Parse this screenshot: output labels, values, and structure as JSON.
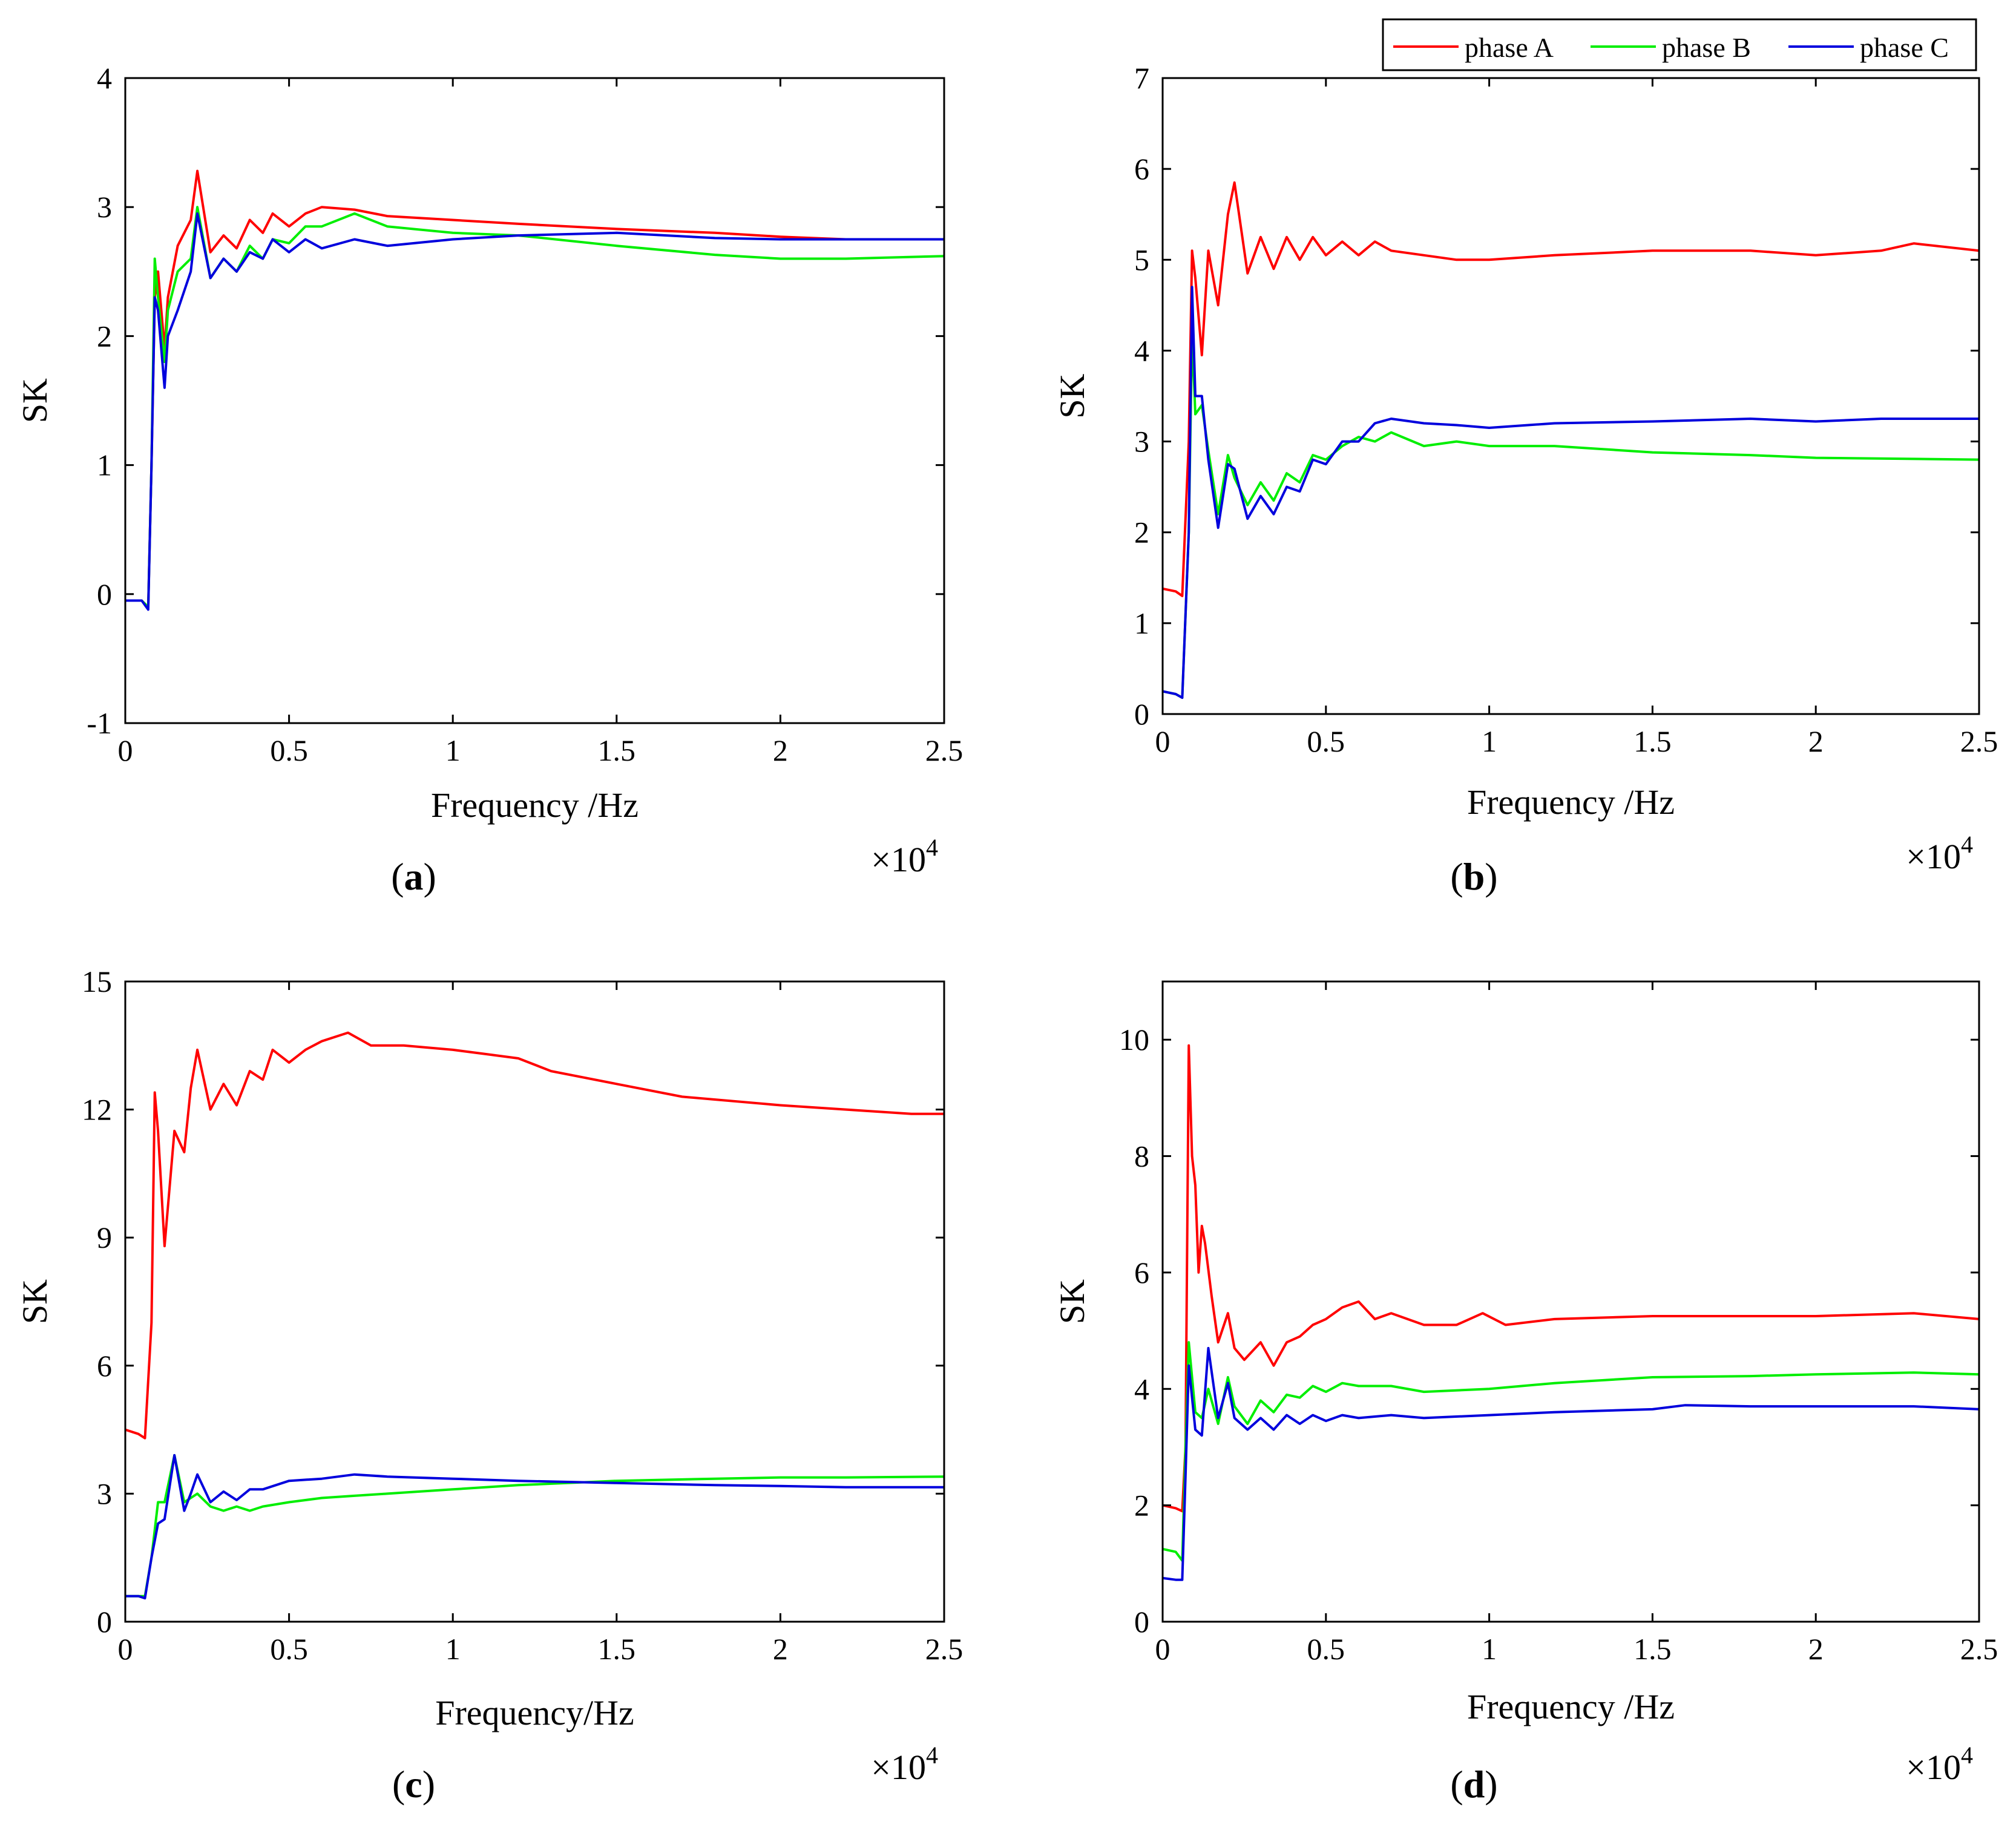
{
  "colors": {
    "phase_a": "#ff0000",
    "phase_b": "#00ee00",
    "phase_c": "#0000dd",
    "axes": "#000000",
    "background": "#ffffff"
  },
  "legend": {
    "entries": [
      "phase A",
      "phase B",
      "phase C"
    ],
    "placement": "top-right, above panel (b)"
  },
  "chart_data": [
    {
      "type": "line",
      "panel_label": "(a)",
      "panel_letter": "a",
      "xlabel": "Frequency /Hz",
      "ylabel": "SK",
      "x_multiplier": "×10",
      "x_multiplier_exp": "4",
      "xlim": [
        0,
        2.5
      ],
      "ylim": [
        -1,
        4
      ],
      "xticks": [
        0,
        0.5,
        1,
        1.5,
        2,
        2.5
      ],
      "xtick_labels": [
        "0",
        "0.5",
        "1",
        "1.5",
        "2",
        "2.5"
      ],
      "yticks": [
        -1,
        0,
        1,
        2,
        3,
        4
      ],
      "ytick_labels": [
        "-1",
        "0",
        "1",
        "2",
        "3",
        "4"
      ],
      "grid": false,
      "series": [
        {
          "name": "phase A",
          "x": [
            0,
            0.05,
            0.07,
            0.08,
            0.09,
            0.1,
            0.12,
            0.13,
            0.16,
            0.2,
            0.22,
            0.26,
            0.3,
            0.34,
            0.38,
            0.42,
            0.45,
            0.5,
            0.55,
            0.6,
            0.7,
            0.8,
            1.0,
            1.2,
            1.5,
            1.8,
            2.0,
            2.2,
            2.5
          ],
          "y": [
            -0.05,
            -0.05,
            -0.1,
            1.0,
            2.3,
            2.5,
            1.9,
            2.3,
            2.7,
            2.9,
            3.28,
            2.65,
            2.78,
            2.68,
            2.9,
            2.8,
            2.95,
            2.85,
            2.95,
            3.0,
            2.98,
            2.93,
            2.9,
            2.87,
            2.83,
            2.8,
            2.77,
            2.75,
            2.75
          ]
        },
        {
          "name": "phase B",
          "x": [
            0,
            0.05,
            0.07,
            0.08,
            0.09,
            0.1,
            0.12,
            0.13,
            0.16,
            0.2,
            0.22,
            0.26,
            0.3,
            0.34,
            0.38,
            0.42,
            0.45,
            0.5,
            0.55,
            0.6,
            0.7,
            0.8,
            1.0,
            1.2,
            1.5,
            1.8,
            2.0,
            2.2,
            2.5
          ],
          "y": [
            -0.05,
            -0.05,
            -0.1,
            1.0,
            2.6,
            2.3,
            1.8,
            2.2,
            2.5,
            2.6,
            3.0,
            2.45,
            2.6,
            2.5,
            2.7,
            2.6,
            2.75,
            2.72,
            2.85,
            2.85,
            2.95,
            2.85,
            2.8,
            2.78,
            2.7,
            2.63,
            2.6,
            2.6,
            2.62
          ]
        },
        {
          "name": "phase C",
          "x": [
            0,
            0.05,
            0.07,
            0.08,
            0.09,
            0.1,
            0.12,
            0.13,
            0.16,
            0.2,
            0.22,
            0.26,
            0.3,
            0.34,
            0.38,
            0.42,
            0.45,
            0.5,
            0.55,
            0.6,
            0.7,
            0.8,
            1.0,
            1.2,
            1.5,
            1.8,
            2.0,
            2.2,
            2.5
          ],
          "y": [
            -0.05,
            -0.05,
            -0.12,
            1.0,
            2.3,
            2.2,
            1.6,
            2.0,
            2.2,
            2.5,
            2.95,
            2.45,
            2.6,
            2.5,
            2.65,
            2.6,
            2.75,
            2.65,
            2.75,
            2.68,
            2.75,
            2.7,
            2.75,
            2.78,
            2.8,
            2.76,
            2.75,
            2.75,
            2.75
          ]
        }
      ]
    },
    {
      "type": "line",
      "panel_label": "(b)",
      "panel_letter": "b",
      "xlabel": "Frequency /Hz",
      "ylabel": "SK",
      "x_multiplier": "×10",
      "x_multiplier_exp": "4",
      "xlim": [
        0,
        2.5
      ],
      "ylim": [
        0,
        7
      ],
      "xticks": [
        0,
        0.5,
        1,
        1.5,
        2,
        2.5
      ],
      "xtick_labels": [
        "0",
        "0.5",
        "1",
        "1.5",
        "2",
        "2.5"
      ],
      "yticks": [
        0,
        1,
        2,
        3,
        4,
        5,
        6,
        7
      ],
      "ytick_labels": [
        "0",
        "1",
        "2",
        "3",
        "4",
        "5",
        "6",
        "7"
      ],
      "grid": false,
      "series": [
        {
          "name": "phase A",
          "x": [
            0,
            0.04,
            0.06,
            0.08,
            0.09,
            0.1,
            0.12,
            0.14,
            0.17,
            0.2,
            0.22,
            0.26,
            0.3,
            0.34,
            0.38,
            0.42,
            0.46,
            0.5,
            0.55,
            0.6,
            0.65,
            0.7,
            0.8,
            0.9,
            1.0,
            1.2,
            1.5,
            1.8,
            2.0,
            2.2,
            2.3,
            2.5
          ],
          "y": [
            1.38,
            1.35,
            1.3,
            3.0,
            5.1,
            4.8,
            3.95,
            5.1,
            4.5,
            5.5,
            5.85,
            4.85,
            5.25,
            4.9,
            5.25,
            5.0,
            5.25,
            5.05,
            5.2,
            5.05,
            5.2,
            5.1,
            5.05,
            5.0,
            5.0,
            5.05,
            5.1,
            5.1,
            5.05,
            5.1,
            5.18,
            5.1
          ]
        },
        {
          "name": "phase B",
          "x": [
            0,
            0.04,
            0.06,
            0.08,
            0.09,
            0.1,
            0.12,
            0.14,
            0.17,
            0.2,
            0.22,
            0.26,
            0.3,
            0.34,
            0.38,
            0.42,
            0.46,
            0.5,
            0.55,
            0.6,
            0.65,
            0.7,
            0.8,
            0.9,
            1.0,
            1.2,
            1.5,
            1.8,
            2.0,
            2.5
          ],
          "y": [
            0.25,
            0.22,
            0.18,
            2.0,
            4.2,
            3.3,
            3.4,
            2.9,
            2.2,
            2.85,
            2.6,
            2.3,
            2.55,
            2.35,
            2.65,
            2.55,
            2.85,
            2.8,
            2.95,
            3.05,
            3.0,
            3.1,
            2.95,
            3.0,
            2.95,
            2.95,
            2.88,
            2.85,
            2.82,
            2.8
          ]
        },
        {
          "name": "phase C",
          "x": [
            0,
            0.04,
            0.06,
            0.08,
            0.09,
            0.1,
            0.12,
            0.14,
            0.17,
            0.2,
            0.22,
            0.26,
            0.3,
            0.34,
            0.38,
            0.42,
            0.46,
            0.5,
            0.55,
            0.6,
            0.65,
            0.7,
            0.8,
            0.9,
            1.0,
            1.2,
            1.5,
            1.8,
            2.0,
            2.2,
            2.5
          ],
          "y": [
            0.25,
            0.22,
            0.18,
            2.0,
            4.7,
            3.5,
            3.5,
            2.8,
            2.05,
            2.75,
            2.7,
            2.15,
            2.4,
            2.2,
            2.5,
            2.45,
            2.8,
            2.75,
            3.0,
            3.0,
            3.2,
            3.25,
            3.2,
            3.18,
            3.15,
            3.2,
            3.22,
            3.25,
            3.22,
            3.25,
            3.25
          ]
        }
      ]
    },
    {
      "type": "line",
      "panel_label": "(c)",
      "panel_letter": "c",
      "xlabel": "Frequency/Hz",
      "ylabel": "SK",
      "x_multiplier": "×10",
      "x_multiplier_exp": "4",
      "xlim": [
        0,
        2.5
      ],
      "ylim": [
        0,
        15
      ],
      "xticks": [
        0,
        0.5,
        1,
        1.5,
        2,
        2.5
      ],
      "xtick_labels": [
        "0",
        "0.5",
        "1",
        "1.5",
        "2",
        "2.5"
      ],
      "yticks": [
        0,
        3,
        6,
        9,
        12,
        15
      ],
      "ytick_labels": [
        "0",
        "3",
        "6",
        "9",
        "12",
        "15"
      ],
      "grid": false,
      "series": [
        {
          "name": "phase A",
          "x": [
            0,
            0.04,
            0.06,
            0.08,
            0.09,
            0.1,
            0.12,
            0.15,
            0.18,
            0.2,
            0.22,
            0.26,
            0.3,
            0.34,
            0.38,
            0.42,
            0.45,
            0.5,
            0.55,
            0.6,
            0.68,
            0.75,
            0.85,
            1.0,
            1.1,
            1.2,
            1.3,
            1.5,
            1.7,
            2.0,
            2.2,
            2.4,
            2.5
          ],
          "y": [
            4.5,
            4.4,
            4.3,
            7.0,
            12.4,
            11.5,
            8.8,
            11.5,
            11.0,
            12.5,
            13.4,
            12.0,
            12.6,
            12.1,
            12.9,
            12.7,
            13.4,
            13.1,
            13.4,
            13.6,
            13.8,
            13.5,
            13.5,
            13.4,
            13.3,
            13.2,
            12.9,
            12.6,
            12.3,
            12.1,
            12.0,
            11.9,
            11.9
          ]
        },
        {
          "name": "phase B",
          "x": [
            0,
            0.04,
            0.06,
            0.08,
            0.1,
            0.12,
            0.15,
            0.18,
            0.2,
            0.22,
            0.26,
            0.3,
            0.34,
            0.38,
            0.42,
            0.5,
            0.6,
            0.7,
            0.8,
            1.0,
            1.2,
            1.5,
            1.8,
            2.0,
            2.2,
            2.5
          ],
          "y": [
            0.6,
            0.6,
            0.6,
            1.5,
            2.8,
            2.8,
            3.9,
            2.8,
            2.9,
            3.0,
            2.7,
            2.6,
            2.7,
            2.6,
            2.7,
            2.8,
            2.9,
            2.95,
            3.0,
            3.1,
            3.2,
            3.3,
            3.35,
            3.38,
            3.38,
            3.4
          ]
        },
        {
          "name": "phase C",
          "x": [
            0,
            0.04,
            0.06,
            0.08,
            0.1,
            0.12,
            0.15,
            0.18,
            0.2,
            0.22,
            0.26,
            0.3,
            0.34,
            0.38,
            0.42,
            0.5,
            0.6,
            0.7,
            0.8,
            1.0,
            1.2,
            1.5,
            1.8,
            2.0,
            2.2,
            2.5
          ],
          "y": [
            0.6,
            0.6,
            0.55,
            1.5,
            2.3,
            2.4,
            3.9,
            2.6,
            3.0,
            3.45,
            2.8,
            3.05,
            2.85,
            3.1,
            3.1,
            3.3,
            3.35,
            3.45,
            3.4,
            3.35,
            3.3,
            3.25,
            3.2,
            3.18,
            3.15,
            3.15
          ]
        }
      ]
    },
    {
      "type": "line",
      "panel_label": "(d)",
      "panel_letter": "d",
      "xlabel": "Frequency /Hz",
      "ylabel": "SK",
      "x_multiplier": "×10",
      "x_multiplier_exp": "4",
      "xlim": [
        0,
        2.5
      ],
      "ylim": [
        0,
        11
      ],
      "xticks": [
        0,
        0.5,
        1,
        1.5,
        2,
        2.5
      ],
      "xtick_labels": [
        "0",
        "0.5",
        "1",
        "1.5",
        "2",
        "2.5"
      ],
      "yticks": [
        0,
        2,
        4,
        6,
        8,
        10
      ],
      "ytick_labels": [
        "0",
        "2",
        "4",
        "6",
        "8",
        "10"
      ],
      "grid": false,
      "series": [
        {
          "name": "phase A",
          "x": [
            0,
            0.04,
            0.06,
            0.07,
            0.08,
            0.09,
            0.1,
            0.11,
            0.12,
            0.13,
            0.15,
            0.17,
            0.2,
            0.22,
            0.25,
            0.3,
            0.34,
            0.38,
            0.42,
            0.46,
            0.5,
            0.55,
            0.6,
            0.65,
            0.7,
            0.8,
            0.9,
            0.98,
            1.05,
            1.2,
            1.5,
            1.8,
            2.0,
            2.3,
            2.5
          ],
          "y": [
            2.0,
            1.95,
            1.9,
            3.0,
            9.9,
            8.0,
            7.5,
            6.0,
            6.8,
            6.5,
            5.6,
            4.8,
            5.3,
            4.7,
            4.5,
            4.8,
            4.4,
            4.8,
            4.9,
            5.1,
            5.2,
            5.4,
            5.5,
            5.2,
            5.3,
            5.1,
            5.1,
            5.3,
            5.1,
            5.2,
            5.25,
            5.25,
            5.25,
            5.3,
            5.2
          ]
        },
        {
          "name": "phase B",
          "x": [
            0,
            0.04,
            0.06,
            0.07,
            0.08,
            0.1,
            0.12,
            0.14,
            0.17,
            0.2,
            0.22,
            0.26,
            0.3,
            0.34,
            0.38,
            0.42,
            0.46,
            0.5,
            0.55,
            0.6,
            0.7,
            0.8,
            1.0,
            1.2,
            1.5,
            1.8,
            2.0,
            2.3,
            2.5
          ],
          "y": [
            1.25,
            1.2,
            1.05,
            3.0,
            4.8,
            3.6,
            3.5,
            4.0,
            3.4,
            4.2,
            3.7,
            3.4,
            3.8,
            3.6,
            3.9,
            3.85,
            4.05,
            3.95,
            4.1,
            4.05,
            4.05,
            3.95,
            4.0,
            4.1,
            4.2,
            4.22,
            4.25,
            4.28,
            4.25
          ]
        },
        {
          "name": "phase C",
          "x": [
            0,
            0.04,
            0.06,
            0.07,
            0.08,
            0.1,
            0.12,
            0.14,
            0.17,
            0.2,
            0.22,
            0.26,
            0.3,
            0.34,
            0.38,
            0.42,
            0.46,
            0.5,
            0.55,
            0.6,
            0.7,
            0.8,
            1.0,
            1.2,
            1.5,
            1.6,
            1.8,
            2.0,
            2.3,
            2.5
          ],
          "y": [
            0.75,
            0.72,
            0.72,
            2.5,
            4.4,
            3.3,
            3.2,
            4.7,
            3.5,
            4.1,
            3.5,
            3.3,
            3.5,
            3.3,
            3.55,
            3.4,
            3.55,
            3.45,
            3.55,
            3.5,
            3.55,
            3.5,
            3.55,
            3.6,
            3.65,
            3.72,
            3.7,
            3.7,
            3.7,
            3.65
          ]
        }
      ]
    }
  ]
}
